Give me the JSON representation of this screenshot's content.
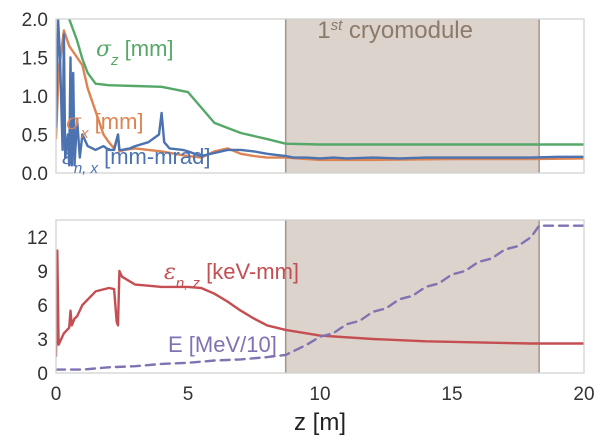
{
  "chart_data": [
    {
      "panel": "top",
      "type": "line",
      "xlim": [
        0,
        20
      ],
      "ylim": [
        0,
        2.0
      ],
      "yticks": [
        "0.0",
        "0.5",
        "1.0",
        "1.5",
        "2.0"
      ],
      "grid": false,
      "shaded_region": {
        "x": [
          8.7,
          18.3
        ],
        "label_main": "1",
        "label_sup": "st",
        "label_rest": " cryomodule",
        "color": "#d9cfc9"
      },
      "series": [
        {
          "name": "σz [mm]",
          "label_base": "σ",
          "label_sub": "z",
          "label_unit": " [mm]",
          "color": "#55a868",
          "x": [
            0.0,
            0.2,
            0.5,
            0.8,
            1.0,
            1.2,
            1.5,
            2.0,
            3.0,
            4.0,
            5.0,
            5.5,
            6.0,
            7.0,
            8.0,
            8.7,
            10.0,
            12.0,
            15.0,
            18.0,
            20.0
          ],
          "y": [
            2.3,
            2.2,
            2.0,
            1.72,
            1.48,
            1.3,
            1.16,
            1.14,
            1.13,
            1.12,
            1.05,
            0.85,
            0.65,
            0.52,
            0.44,
            0.38,
            0.37,
            0.37,
            0.37,
            0.37,
            0.37
          ]
        },
        {
          "name": "σx [mm]",
          "label_base": "σ",
          "label_sub": "x",
          "label_unit": " [mm]",
          "color": "#dd8452",
          "x": [
            0.0,
            0.1,
            0.3,
            0.5,
            0.8,
            1.0,
            1.2,
            1.5,
            1.8,
            2.0,
            2.2,
            2.35,
            2.4,
            2.6,
            3.0,
            3.5,
            4.0,
            4.5,
            5.0,
            5.5,
            6.0,
            6.5,
            7.0,
            7.5,
            8.0,
            8.7,
            9.5,
            10.0,
            12.0,
            15.0,
            18.0,
            20.0
          ],
          "y": [
            0.45,
            1.3,
            1.85,
            1.65,
            1.5,
            1.4,
            1.1,
            0.8,
            0.5,
            0.4,
            0.32,
            0.5,
            0.28,
            0.3,
            0.32,
            0.3,
            0.28,
            0.25,
            0.22,
            0.2,
            0.28,
            0.32,
            0.25,
            0.22,
            0.2,
            0.2,
            0.18,
            0.17,
            0.17,
            0.18,
            0.18,
            0.19
          ]
        },
        {
          "name": "εn,x [mm-mrad]",
          "label_base": "ε",
          "label_sub": "n, x",
          "label_unit": " [mm-mrad]",
          "color": "#4c72b0",
          "x": [
            0.0,
            0.08,
            0.15,
            0.25,
            0.3,
            0.35,
            0.45,
            0.5,
            0.55,
            0.6,
            0.65,
            0.7,
            0.8,
            0.9,
            1.0,
            1.2,
            1.5,
            1.8,
            2.0,
            2.2,
            2.35,
            2.4,
            2.5,
            2.8,
            3.0,
            3.5,
            3.9,
            4.0,
            4.1,
            4.3,
            4.8,
            5.0,
            5.5,
            6.0,
            6.5,
            7.0,
            7.5,
            8.0,
            8.7,
            9.0,
            9.5,
            10.0,
            10.5,
            11.0,
            12.0,
            13.0,
            14.0,
            15.0,
            16.0,
            17.0,
            18.0,
            19.0,
            20.0
          ],
          "y": [
            0.6,
            2.0,
            1.5,
            0.3,
            1.8,
            0.2,
            0.5,
            0.1,
            1.5,
            0.1,
            1.3,
            0.1,
            0.7,
            0.2,
            0.5,
            0.35,
            0.3,
            0.35,
            0.3,
            0.3,
            0.5,
            0.3,
            0.3,
            0.32,
            0.35,
            0.4,
            0.5,
            0.78,
            0.4,
            0.32,
            0.3,
            0.28,
            0.22,
            0.26,
            0.3,
            0.3,
            0.28,
            0.25,
            0.22,
            0.2,
            0.2,
            0.19,
            0.2,
            0.19,
            0.2,
            0.19,
            0.2,
            0.2,
            0.2,
            0.2,
            0.2,
            0.21,
            0.21
          ]
        }
      ]
    },
    {
      "panel": "bottom",
      "type": "line",
      "xlim": [
        0,
        20
      ],
      "ylim": [
        0,
        13.5
      ],
      "yticks": [
        "0",
        "3",
        "6",
        "9",
        "12"
      ],
      "xticks": [
        "0",
        "5",
        "10",
        "15",
        "20"
      ],
      "xlabel": "z [m]",
      "grid": false,
      "shaded_region": {
        "x": [
          8.7,
          18.3
        ],
        "color": "#d9cfc9"
      },
      "series": [
        {
          "name": "εn,z [keV-mm]",
          "label_base": "ε",
          "label_sub": "n, z",
          "label_unit": " [keV-mm]",
          "color": "#c44e52",
          "x": [
            0.0,
            0.05,
            0.1,
            0.3,
            0.5,
            0.55,
            0.6,
            0.7,
            0.8,
            1.0,
            1.5,
            2.0,
            2.2,
            2.3,
            2.35,
            2.4,
            2.5,
            3.0,
            3.5,
            4.0,
            4.5,
            5.0,
            5.5,
            6.0,
            6.5,
            7.0,
            7.5,
            8.0,
            8.7,
            10.0,
            12.0,
            14.0,
            16.0,
            18.0,
            20.0
          ],
          "y": [
            1.5,
            10.8,
            2.5,
            3.5,
            4.0,
            5.5,
            4.2,
            4.8,
            5.0,
            6.0,
            7.2,
            7.5,
            7.4,
            4.5,
            4.2,
            9.0,
            8.5,
            7.8,
            7.7,
            7.6,
            7.6,
            7.6,
            7.5,
            7.0,
            6.3,
            5.5,
            4.8,
            4.2,
            3.8,
            3.3,
            3.0,
            2.8,
            2.7,
            2.6,
            2.6
          ]
        },
        {
          "name": "E [MeV/10]",
          "label": "E [MeV/10]",
          "color": "#8172b2",
          "dashed": true,
          "x": [
            0.0,
            0.5,
            1.0,
            2.0,
            3.0,
            4.0,
            5.0,
            6.0,
            7.0,
            8.0,
            8.7,
            9.5,
            10.0,
            10.5,
            11.0,
            11.5,
            12.0,
            12.5,
            13.0,
            13.5,
            14.0,
            14.5,
            15.0,
            15.5,
            16.0,
            16.5,
            17.0,
            17.5,
            18.0,
            18.3,
            19.0,
            20.0
          ],
          "y": [
            0.3,
            0.3,
            0.3,
            0.5,
            0.6,
            0.8,
            0.9,
            1.1,
            1.2,
            1.4,
            1.6,
            2.5,
            3.2,
            3.5,
            4.3,
            4.6,
            5.4,
            5.7,
            6.5,
            6.8,
            7.6,
            7.9,
            8.7,
            9.0,
            9.8,
            10.1,
            10.9,
            11.2,
            12.0,
            13.0,
            13.0,
            13.0
          ]
        }
      ]
    }
  ]
}
